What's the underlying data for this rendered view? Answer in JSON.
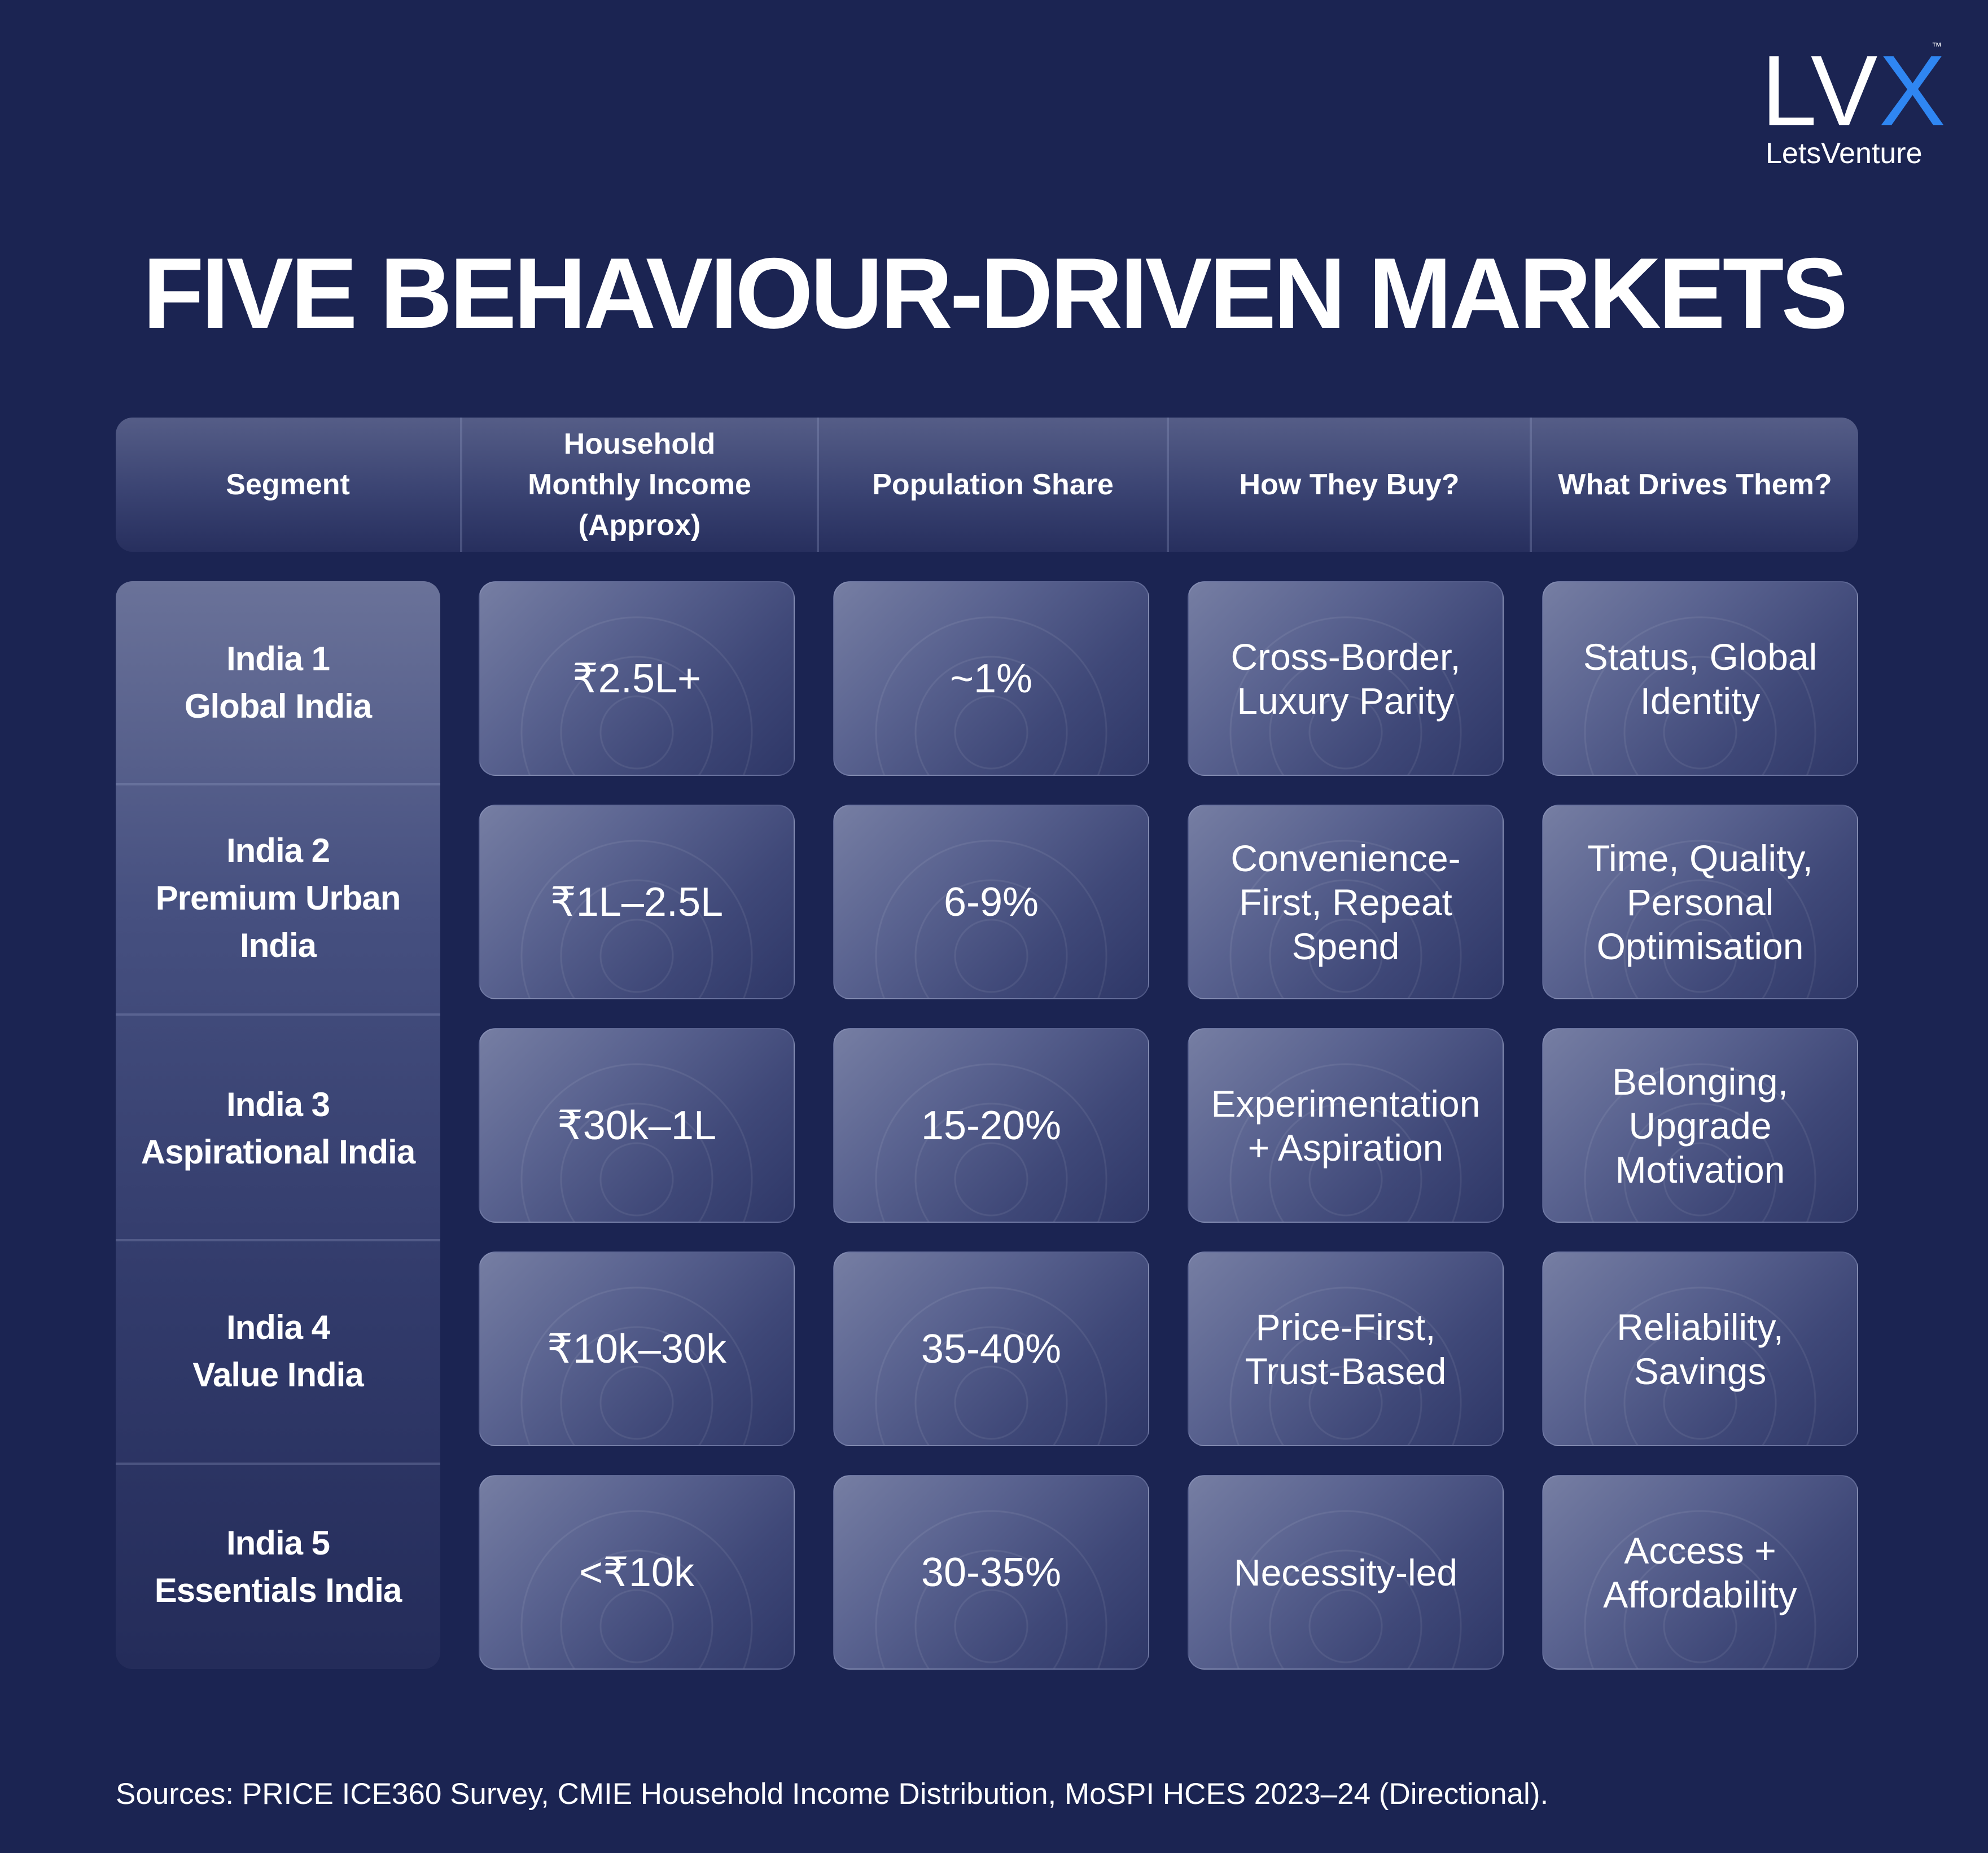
{
  "brand": {
    "mark_lv": "LV",
    "mark_x": "X",
    "trademark": "™",
    "name": "LetsVenture",
    "accent_color": "#2f86f2"
  },
  "title": "FIVE BEHAVIOUR-DRIVEN MARKETS",
  "table": {
    "headers": {
      "segment": "Segment",
      "income_line1": "Household",
      "income_line2": "Monthly Income",
      "income_line3": "(Approx)",
      "population": "Population Share",
      "how_buy": "How They Buy?",
      "drivers": "What Drives Them?"
    },
    "rows": [
      {
        "segment_line1": "India 1",
        "segment_line2": "Global India",
        "segment_line3": "",
        "income": "₹2.5L+",
        "population": "~1%",
        "how_buy_line1": "Cross-Border,",
        "how_buy_line2": "Luxury Parity",
        "how_buy_line3": "",
        "drivers_line1": "Status, Global",
        "drivers_line2": "Identity",
        "drivers_line3": ""
      },
      {
        "segment_line1": "India 2",
        "segment_line2": "Premium Urban",
        "segment_line3": "India",
        "income": "₹1L–2.5L",
        "population": "6-9%",
        "how_buy_line1": "Convenience-",
        "how_buy_line2": "First, Repeat",
        "how_buy_line3": "Spend",
        "drivers_line1": "Time, Quality,",
        "drivers_line2": "Personal",
        "drivers_line3": "Optimisation"
      },
      {
        "segment_line1": "India 3",
        "segment_line2": "Aspirational India",
        "segment_line3": "",
        "income": "₹30k–1L",
        "population": "15-20%",
        "how_buy_line1": "Experimentation",
        "how_buy_line2": "+ Aspiration",
        "how_buy_line3": "",
        "drivers_line1": "Belonging,",
        "drivers_line2": "Upgrade",
        "drivers_line3": "Motivation"
      },
      {
        "segment_line1": "India 4",
        "segment_line2": "Value India",
        "segment_line3": "",
        "income": "₹10k–30k",
        "population": "35-40%",
        "how_buy_line1": "Price-First,",
        "how_buy_line2": "Trust-Based",
        "how_buy_line3": "",
        "drivers_line1": "Reliability,",
        "drivers_line2": "Savings",
        "drivers_line3": ""
      },
      {
        "segment_line1": "India 5",
        "segment_line2": "Essentials India",
        "segment_line3": "",
        "income": "<₹10k",
        "population": "30-35%",
        "how_buy_line1": "Necessity-led",
        "how_buy_line2": "",
        "how_buy_line3": "",
        "drivers_line1": "Access +",
        "drivers_line2": "Affordability",
        "drivers_line3": ""
      }
    ]
  },
  "sources": "Sources: PRICE ICE360 Survey, CMIE Household Income Distribution, MoSPI HCES 2023–24 (Directional)."
}
